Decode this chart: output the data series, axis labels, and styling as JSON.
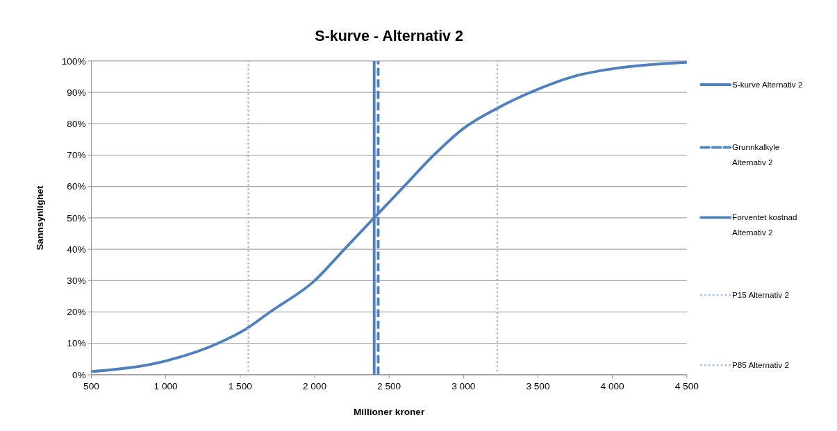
{
  "chart_data": {
    "type": "line",
    "title": "S-kurve - Alternativ 2",
    "xlabel": "Millioner kroner",
    "ylabel": "Sannsynlighet",
    "xlim": [
      500,
      4500
    ],
    "xticks": [
      500,
      {
        "value": 1000,
        "label": "1 000"
      },
      {
        "value": 1500,
        "label": "1 500"
      },
      {
        "value": 2000,
        "label": "2 000"
      },
      {
        "value": 2500,
        "label": "2 500"
      },
      {
        "value": 3000,
        "label": "3 000"
      },
      {
        "value": 3500,
        "label": "3 500"
      },
      {
        "value": 4000,
        "label": "4 000"
      },
      {
        "value": 4500,
        "label": "4 500"
      }
    ],
    "ylim": [
      0,
      100
    ],
    "yticks": [
      {
        "value": 0,
        "label": "0%"
      },
      {
        "value": 10,
        "label": "10%"
      },
      {
        "value": 20,
        "label": "20%"
      },
      {
        "value": 30,
        "label": "30%"
      },
      {
        "value": 40,
        "label": "40%"
      },
      {
        "value": 50,
        "label": "50%"
      },
      {
        "value": 60,
        "label": "60%"
      },
      {
        "value": 70,
        "label": "70%"
      },
      {
        "value": 80,
        "label": "80%"
      },
      {
        "value": 90,
        "label": "90%"
      },
      {
        "value": 100,
        "label": "100%"
      }
    ],
    "grid": "y",
    "legend": "right",
    "series": [
      {
        "name": "S-kurve Alternativ 2",
        "color": "#4f81bd",
        "line_style": "solid",
        "x": [
          500,
          1000,
          1350,
          1550,
          1700,
          2000,
          2200,
          2400,
          2600,
          2800,
          3000,
          3230,
          3450,
          3750,
          4000,
          4500
        ],
        "values": [
          1.0,
          4.4,
          10,
          14.9,
          20,
          30,
          40,
          50,
          60,
          70,
          78.5,
          85,
          90,
          95.2,
          97.5,
          99.6
        ]
      },
      {
        "name": "Grunnkalkyle Alternativ 2",
        "color": "#4f81bd",
        "line_style": "dashed",
        "x": [
          2427,
          2427
        ],
        "values": [
          0,
          100
        ]
      },
      {
        "name": "Forventet kostnad Alternativ 2",
        "color": "#4f81bd",
        "line_style": "solid",
        "x": [
          2400,
          2400
        ],
        "values": [
          0,
          100
        ]
      },
      {
        "name": "P15 Alternativ 2",
        "color": "#a7c0de",
        "line_style": "dotted",
        "x": [
          1555,
          1555
        ],
        "values": [
          0,
          100
        ]
      },
      {
        "name": "P85 Alternativ 2",
        "color": "#a7c0de",
        "line_style": "dotted",
        "x": [
          3227,
          3227
        ],
        "values": [
          0,
          100
        ]
      }
    ]
  }
}
